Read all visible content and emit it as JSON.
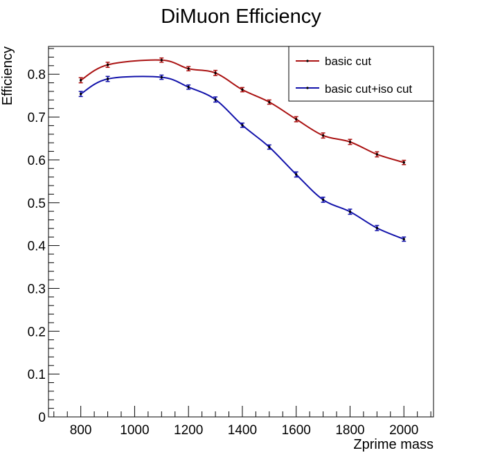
{
  "chart_data": {
    "type": "line",
    "title": "DiMuon Efficiency",
    "xlabel": "Zprime mass",
    "ylabel": "Efficiency",
    "xlim": [
      680,
      2110
    ],
    "ylim": [
      0,
      0.865
    ],
    "x_ticks": [
      800,
      1000,
      1200,
      1400,
      1600,
      1800,
      2000
    ],
    "y_ticks": [
      0,
      0.1,
      0.2,
      0.3,
      0.4,
      0.5,
      0.6,
      0.7,
      0.8
    ],
    "x_tick_labels": [
      "800",
      "1000",
      "1200",
      "1400",
      "1600",
      "1800",
      "2000"
    ],
    "y_tick_labels": [
      "0",
      "0.1",
      "0.2",
      "0.3",
      "0.4",
      "0.5",
      "0.6",
      "0.7",
      "0.8"
    ],
    "grid": false,
    "legend_position": "top-right",
    "x": [
      800,
      900,
      1100,
      1200,
      1300,
      1400,
      1500,
      1600,
      1700,
      1800,
      1900,
      2000
    ],
    "series": [
      {
        "name": "basic cut",
        "color": "#aa1111",
        "values": [
          0.786,
          0.822,
          0.833,
          0.813,
          0.803,
          0.764,
          0.735,
          0.695,
          0.657,
          0.642,
          0.613,
          0.594
        ],
        "errors": [
          0.006,
          0.006,
          0.005,
          0.005,
          0.006,
          0.005,
          0.005,
          0.006,
          0.006,
          0.006,
          0.006,
          0.005
        ]
      },
      {
        "name": "basic cut+iso cut",
        "color": "#1111aa",
        "values": [
          0.754,
          0.789,
          0.793,
          0.77,
          0.741,
          0.681,
          0.63,
          0.566,
          0.507,
          0.479,
          0.441,
          0.415
        ],
        "errors": [
          0.006,
          0.006,
          0.005,
          0.005,
          0.006,
          0.005,
          0.005,
          0.006,
          0.006,
          0.006,
          0.006,
          0.005
        ]
      }
    ]
  }
}
